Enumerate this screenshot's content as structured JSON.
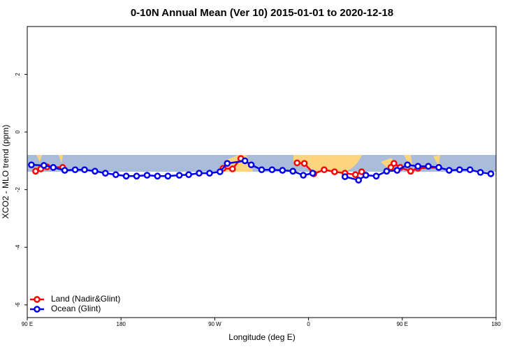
{
  "chart_data": {
    "type": "line",
    "title": "0-10N Annual Mean (Ver 10)   2015-01-01 to 2020-12-18",
    "x_label": "Longitude (deg E)",
    "y_label": "XCO2 - MLO trend (ppm)",
    "xlim": [
      90,
      540
    ],
    "ylim": [
      -6.44,
      3.66
    ],
    "xticks": [
      {
        "value": 90,
        "label": "90 E"
      },
      180,
      {
        "value": 270,
        "label": "90 W"
      },
      {
        "value": 360,
        "label": "0"
      },
      {
        "value": 450,
        "label": "90 E"
      },
      {
        "value": 540,
        "label": "180"
      }
    ],
    "yticks": [
      -6,
      -4,
      -2,
      0,
      2
    ],
    "legend": "bottom-left",
    "series": [
      {
        "name": "Land (Nadir&Glint)",
        "color": "#ff0000",
        "x": [
          98,
          103,
          109,
          124,
          null,
          278,
          287,
          295,
          null,
          349,
          356,
          365,
          375,
          385,
          395,
          405,
          411,
          null,
          439,
          442,
          448,
          458,
          465,
          485
        ],
        "values": [
          -1.36,
          -1.28,
          -1.21,
          -1.23,
          null,
          -1.26,
          -1.28,
          -0.92,
          null,
          -1.07,
          -1.09,
          -1.45,
          -1.31,
          -1.38,
          -1.43,
          -1.48,
          -1.38,
          null,
          -1.23,
          -1.09,
          -1.23,
          -1.36,
          -1.26,
          -1.23
        ]
      },
      {
        "name": "Ocean (Glint)",
        "color": "#0000ee",
        "x": [
          94,
          106,
          115,
          126,
          136,
          145,
          155,
          165,
          175,
          185,
          195,
          205,
          215,
          225,
          236,
          245,
          255,
          265,
          275,
          282,
          299,
          305,
          315,
          325,
          335,
          345,
          355,
          364,
          null,
          395,
          408,
          415,
          425,
          435,
          445,
          455,
          465,
          475,
          485,
          495,
          505,
          515,
          525,
          535
        ],
        "values": [
          -1.14,
          -1.16,
          -1.23,
          -1.33,
          -1.31,
          -1.31,
          -1.36,
          -1.43,
          -1.48,
          -1.53,
          -1.53,
          -1.5,
          -1.53,
          -1.53,
          -1.5,
          -1.48,
          -1.43,
          -1.43,
          -1.38,
          -1.09,
          -1.0,
          -1.14,
          -1.31,
          -1.31,
          -1.33,
          -1.36,
          -1.5,
          -1.43,
          null,
          -1.55,
          -1.67,
          -1.5,
          -1.53,
          -1.36,
          -1.33,
          -1.14,
          -1.19,
          -1.19,
          -1.23,
          -1.33,
          -1.31,
          -1.31,
          -1.4,
          -1.45
        ]
      }
    ]
  }
}
